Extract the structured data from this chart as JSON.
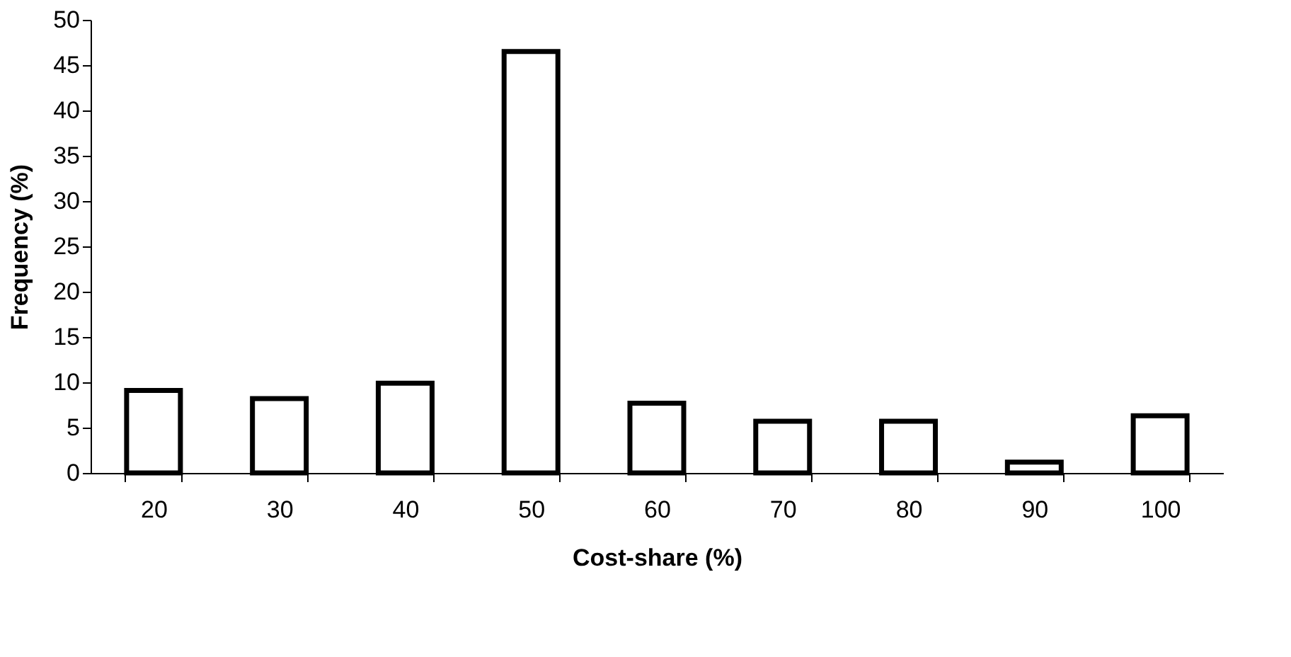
{
  "chart_data": {
    "type": "bar",
    "xlabel": "Cost-share (%)",
    "ylabel": "Frequency (%)",
    "categories": [
      "20",
      "30",
      "40",
      "50",
      "60",
      "70",
      "80",
      "90",
      "100"
    ],
    "values": [
      9.1,
      8.2,
      9.9,
      46.5,
      7.7,
      5.7,
      5.7,
      1.2,
      6.3
    ],
    "color": "#ffffff",
    "ylim": [
      0,
      50
    ],
    "yticks": [
      0,
      5,
      10,
      15,
      20,
      25,
      30,
      35,
      40,
      45,
      50
    ],
    "grid": false
  }
}
